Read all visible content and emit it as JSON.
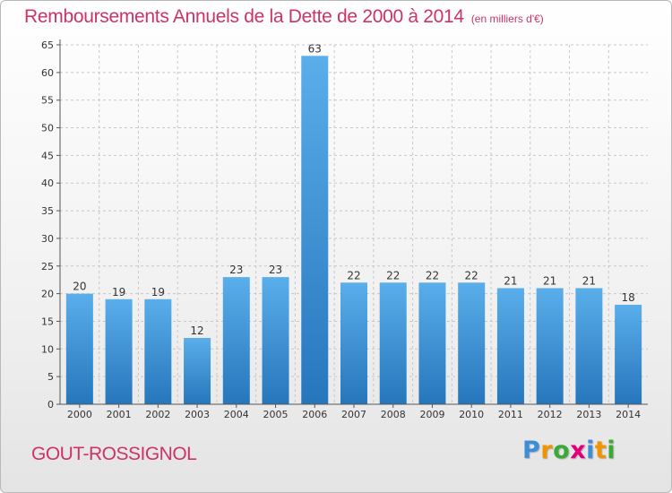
{
  "header": {
    "title": "Remboursements Annuels de la Dette de 2000 à 2014",
    "subtitle": "(en milliers d'€)"
  },
  "footer": {
    "commune": "GOUT-ROSSIGNOL",
    "logo_letters": [
      "P",
      "r",
      "o",
      "x",
      "i",
      "t",
      "i"
    ],
    "logo_colors": [
      "#3a8fd8",
      "#f29400",
      "#3aaa35",
      "#e2007a",
      "#3a8fd8",
      "#f29400",
      "#3aaa35"
    ]
  },
  "colors": {
    "bar_light": "#5aaeea",
    "bar_dark": "#2676bc",
    "grid": "#c8c8c8",
    "accent": "#cc3366"
  },
  "chart_data": {
    "type": "bar",
    "categories": [
      "2000",
      "2001",
      "2002",
      "2003",
      "2004",
      "2005",
      "2006",
      "2007",
      "2008",
      "2009",
      "2010",
      "2011",
      "2012",
      "2013",
      "2014"
    ],
    "values": [
      20,
      19,
      19,
      12,
      23,
      23,
      63,
      22,
      22,
      22,
      22,
      21,
      21,
      21,
      18
    ],
    "ylim": [
      0,
      65
    ],
    "yticks": [
      0,
      5,
      10,
      15,
      20,
      25,
      30,
      35,
      40,
      45,
      50,
      55,
      60,
      65
    ],
    "grid": true
  }
}
